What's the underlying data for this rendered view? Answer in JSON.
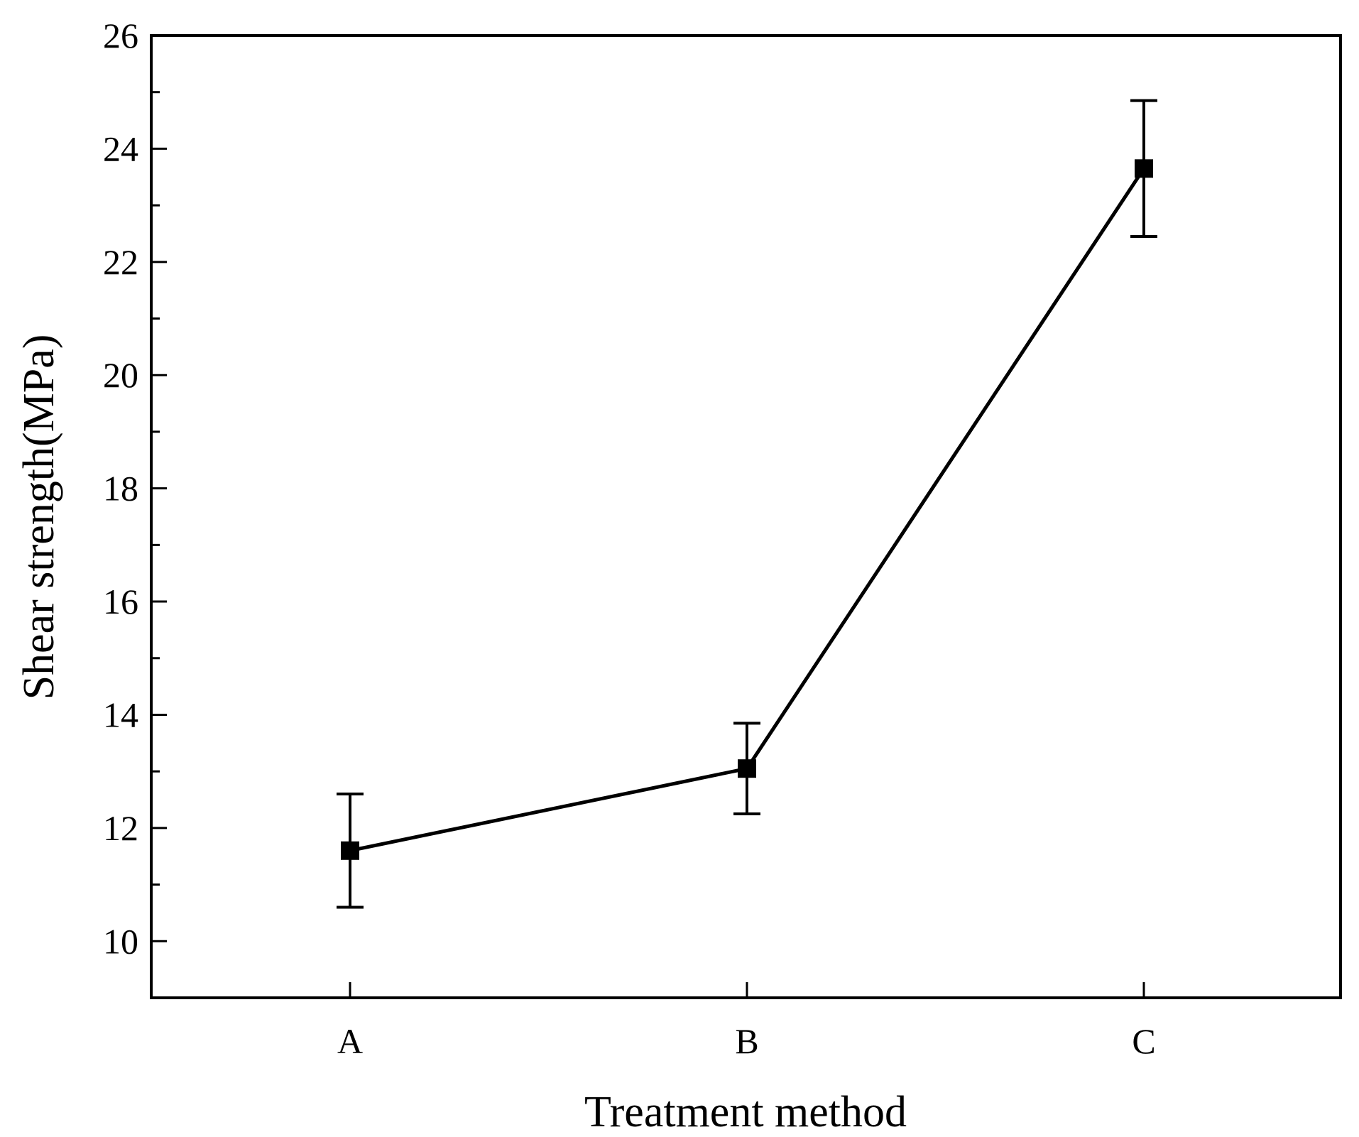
{
  "chart_data": {
    "type": "line",
    "title": "",
    "xlabel": "Treatment method",
    "ylabel": "Shear strength(MPa)",
    "categories": [
      "A",
      "B",
      "C"
    ],
    "series": [
      {
        "name": "Shear strength",
        "values": [
          11.6,
          13.05,
          23.65
        ],
        "error_low": [
          10.6,
          12.25,
          22.45
        ],
        "error_high": [
          12.6,
          13.85,
          24.85
        ]
      }
    ],
    "ylim": [
      9,
      26
    ],
    "yticks": [
      10,
      12,
      14,
      16,
      18,
      20,
      22,
      24,
      26
    ],
    "yminor_step": 1,
    "grid": false,
    "legend": "none"
  },
  "colors": {
    "line": "#000000",
    "marker": "#000000",
    "axis": "#000000",
    "background": "#ffffff"
  }
}
